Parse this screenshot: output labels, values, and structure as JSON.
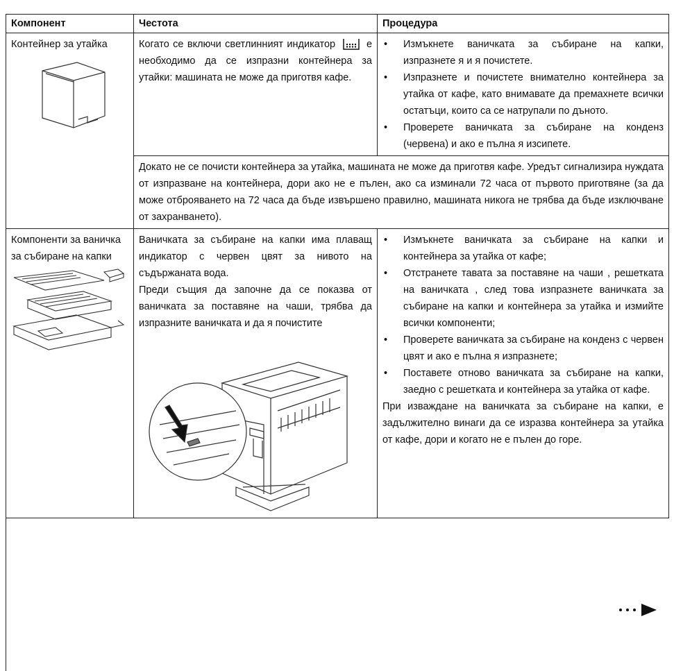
{
  "table": {
    "headers": [
      "Компонент",
      "Честота",
      "Процедура"
    ],
    "rows": [
      {
        "component": "Контейнер за утайка",
        "frequency_before_icon": "Когато се включи светлинният индикатор",
        "frequency_after_icon": "е необходимо да се изпразни контейнера за утайки: машината не може да приготвя кафе.",
        "procedure": [
          "Измъкнете ваничката за събиране на капки, изпразнете я и я почистете.",
          "Изпразнете и почистете внимателно контейнера за утайка от кафе, като внимавате да премахнете всички остатъци, които са се натрупали по дъното.",
          "Проверете ваничката за събиране на конденз (червена) и ако е пълна я изсипете."
        ],
        "note": "Докато не се почисти контейнера за утайка, машината не може да приготвя кафе. Уредът сигнализира нуждата от изпразване на контейнера, дори ако не е пълен, ако са изминали 72 часа от първото приготвяне (за да може отброяването на 72 часа да бъде извършено правилно, машината никога не трябва да бъде изключване от захранването)."
      },
      {
        "component": "Компоненти за ваничка за събиране на капки",
        "frequency": [
          "Ваничката за събиране на капки има плаващ индикатор с червен цвят за нивото на съдържаната вода.",
          "Преди същия да започне да се показва от ваничката за поставяне на чаши, трябва да изпразните ваничката и да я почистите"
        ],
        "procedure": [
          "Измъкнете ваничката за събиране на капки и контейнера за утайка от кафе;",
          "Отстранете тавата за поставяне на чаши , решетката на ваничката , след това изпразнете ваничката за събиране на капки и контейнера за утайка и измийте всички компоненти;",
          "Проверете ваничката за събиране на конденз с червен цвят и ако е пълна я изпразнете;",
          "Поставете отново ваничката за събиране на капки, заедно с решетката и контейнера за утайка от кафе."
        ],
        "procedure_note": "При изваждане на ваничката за събиране на капки, е задължително винаги да се изразва контейнера за утайка от кафе, дори и когато не е пълен до горе."
      }
    ]
  }
}
